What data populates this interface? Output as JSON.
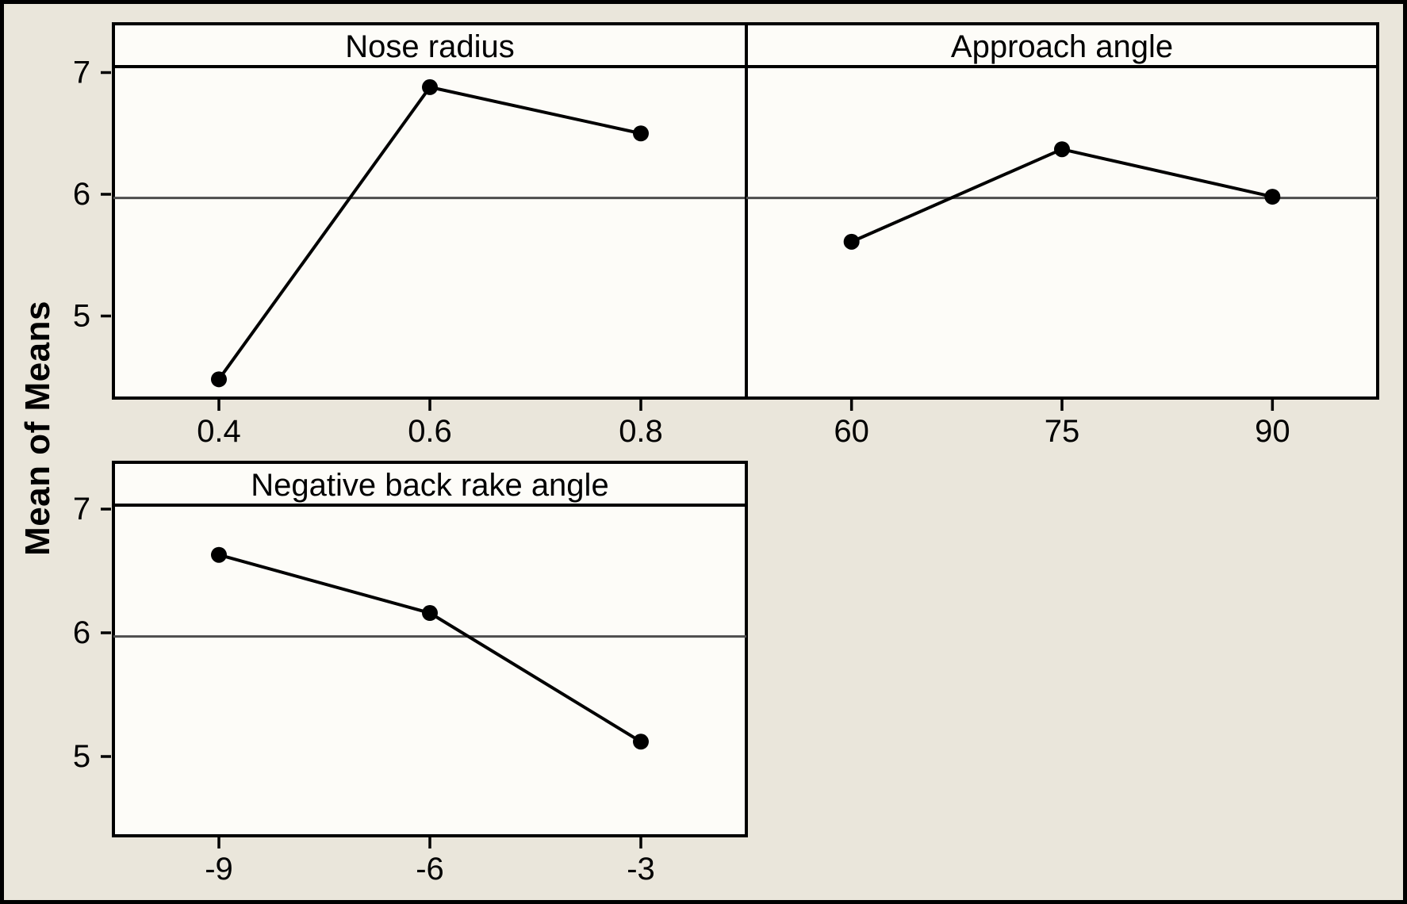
{
  "figure": {
    "y_axis_label": "Mean of Means",
    "reference_mean": 5.97,
    "colors": {
      "background": "#EAE6DB",
      "panel_fill": "#FDFCF8",
      "line": "#000000",
      "reference_line": "#4D4D4D",
      "frame": "#000000"
    }
  },
  "chart_data": [
    {
      "type": "line",
      "title": "Nose radius",
      "categories": [
        "0.4",
        "0.6",
        "0.8"
      ],
      "values": [
        4.48,
        6.88,
        6.5
      ],
      "yticks": [
        7,
        6,
        5
      ],
      "ylim": [
        4.33,
        7.05
      ],
      "ylabel": "Mean of Means",
      "grid": false,
      "legend": "none",
      "reference_line": 5.97
    },
    {
      "type": "line",
      "title": "Approach angle",
      "categories": [
        "60",
        "75",
        "90"
      ],
      "values": [
        5.61,
        6.37,
        5.98
      ],
      "yticks": [
        7,
        6,
        5
      ],
      "ylim": [
        4.33,
        7.05
      ],
      "ylabel": "Mean of Means",
      "grid": false,
      "legend": "none",
      "reference_line": 5.97
    },
    {
      "type": "line",
      "title": "Negative back rake angle",
      "categories": [
        "-9",
        "-6",
        "-3"
      ],
      "values": [
        6.63,
        6.16,
        5.12
      ],
      "yticks": [
        7,
        6,
        5
      ],
      "ylim": [
        4.36,
        7.03
      ],
      "ylabel": "Mean of Means",
      "grid": false,
      "legend": "none",
      "reference_line": 5.97
    }
  ]
}
